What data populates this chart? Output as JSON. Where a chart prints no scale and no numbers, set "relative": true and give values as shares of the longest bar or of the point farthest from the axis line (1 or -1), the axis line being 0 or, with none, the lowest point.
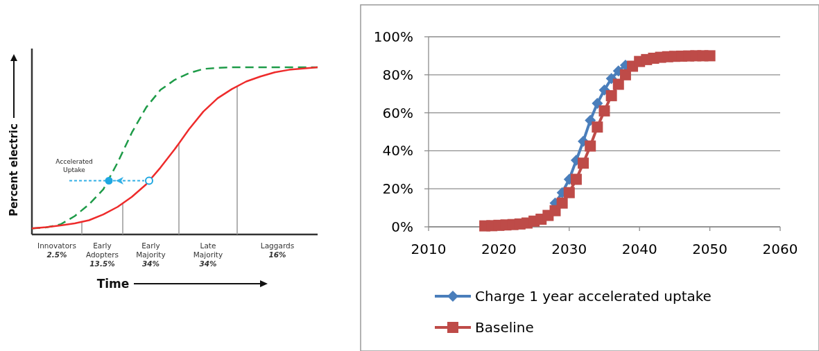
{
  "chart_data": [
    {
      "type": "line",
      "relative": true,
      "xlabel": "Time",
      "ylabel": "Percent electric",
      "categories": [
        null,
        null,
        null,
        null,
        null,
        null,
        null,
        null,
        null,
        null,
        null,
        null,
        null,
        null,
        null,
        null,
        null,
        null,
        null,
        null,
        null
      ],
      "series": [
        {
          "color": "#1e9b48",
          "line_style": "dashed",
          "values": [
            0.036,
            0.042,
            0.06,
            0.11,
            0.18,
            0.27,
            0.43,
            0.61,
            0.76,
            0.865,
            0.925,
            0.965,
            0.99,
            0.997,
            1,
            1,
            1,
            1,
            1,
            1,
            1
          ]
        },
        {
          "color": "#ee2b2b",
          "line_style": "solid",
          "values": [
            0.036,
            0.044,
            0.054,
            0.066,
            0.085,
            0.12,
            0.165,
            0.225,
            0.3,
            0.4,
            0.51,
            0.63,
            0.735,
            0.815,
            0.87,
            0.915,
            0.945,
            0.97,
            0.985,
            0.993,
            1
          ]
        }
      ],
      "annotations": [
        "Innovators 2.5%",
        "Early Adopters 13.5%",
        "Early Majority 34%",
        "Late Majority 34%",
        "Laggards 16%",
        "Accelerated Uptake"
      ]
    },
    {
      "type": "line",
      "xlim": [
        2010,
        2060
      ],
      "xticks": [
        2010,
        2020,
        2030,
        2040,
        2050,
        2060
      ],
      "ylim": [
        0,
        100
      ],
      "yticks": [
        {
          "value": 0,
          "label": "0%"
        },
        {
          "value": 20,
          "label": "20%"
        },
        {
          "value": 40,
          "label": "40%"
        },
        {
          "value": 60,
          "label": "60%"
        },
        {
          "value": 80,
          "label": "80%"
        },
        {
          "value": 100,
          "label": "100%"
        }
      ],
      "grid": "y",
      "legend": "bottom",
      "line_style": "solid",
      "x": [
        2018,
        2019,
        2020,
        2021,
        2022,
        2023,
        2024,
        2025,
        2026,
        2027,
        2028,
        2029,
        2030,
        2031,
        2032,
        2033,
        2034,
        2035,
        2036,
        2037,
        2038,
        2039,
        2040,
        2041,
        2042,
        2043,
        2044,
        2045,
        2046,
        2047,
        2048,
        2049,
        2050
      ],
      "series": [
        {
          "name": "Charge 1 year accelerated uptake",
          "color": "#4a7ebb",
          "marker": "diamond",
          "values": [
            null,
            null,
            null,
            null,
            null,
            null,
            null,
            null,
            null,
            null,
            12.5,
            18,
            25,
            35,
            45,
            56,
            65,
            72,
            78,
            82,
            85,
            null,
            null,
            null,
            null,
            null,
            null,
            null,
            null,
            null,
            null,
            null,
            null
          ]
        },
        {
          "name": "Baseline",
          "color": "#be4b48",
          "marker": "square",
          "values": [
            0.5,
            0.6,
            0.8,
            1,
            1.2,
            1.5,
            2,
            3,
            4,
            6,
            8.5,
            12.5,
            18,
            25,
            33.5,
            42.5,
            52.5,
            61,
            69,
            75,
            80,
            84.5,
            87,
            88,
            88.7,
            89.2,
            89.5,
            89.7,
            89.8,
            89.9,
            90,
            90,
            90
          ]
        }
      ]
    }
  ]
}
